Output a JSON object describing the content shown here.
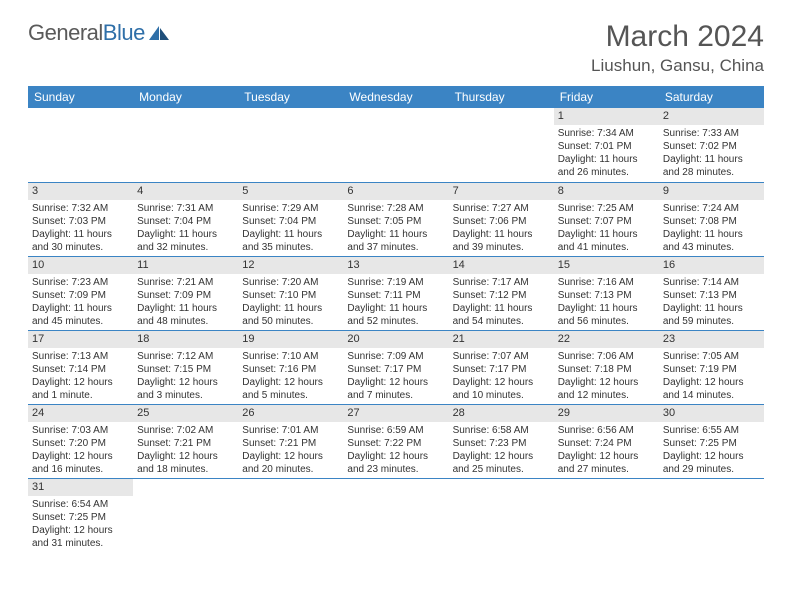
{
  "logo": {
    "text1": "General",
    "text2": "Blue"
  },
  "title": "March 2024",
  "subtitle": "Liushun, Gansu, China",
  "colors": {
    "header_bg": "#3b84c4",
    "header_fg": "#ffffff",
    "daynum_bg": "#e7e7e7",
    "rule": "#3b84c4",
    "logo_blue": "#2f6fa8",
    "text": "#333333"
  },
  "weekdays": [
    "Sunday",
    "Monday",
    "Tuesday",
    "Wednesday",
    "Thursday",
    "Friday",
    "Saturday"
  ],
  "weeks": [
    [
      {
        "n": "",
        "lines": []
      },
      {
        "n": "",
        "lines": []
      },
      {
        "n": "",
        "lines": []
      },
      {
        "n": "",
        "lines": []
      },
      {
        "n": "",
        "lines": []
      },
      {
        "n": "1",
        "lines": [
          "Sunrise: 7:34 AM",
          "Sunset: 7:01 PM",
          "Daylight: 11 hours and 26 minutes."
        ]
      },
      {
        "n": "2",
        "lines": [
          "Sunrise: 7:33 AM",
          "Sunset: 7:02 PM",
          "Daylight: 11 hours and 28 minutes."
        ]
      }
    ],
    [
      {
        "n": "3",
        "lines": [
          "Sunrise: 7:32 AM",
          "Sunset: 7:03 PM",
          "Daylight: 11 hours and 30 minutes."
        ]
      },
      {
        "n": "4",
        "lines": [
          "Sunrise: 7:31 AM",
          "Sunset: 7:04 PM",
          "Daylight: 11 hours and 32 minutes."
        ]
      },
      {
        "n": "5",
        "lines": [
          "Sunrise: 7:29 AM",
          "Sunset: 7:04 PM",
          "Daylight: 11 hours and 35 minutes."
        ]
      },
      {
        "n": "6",
        "lines": [
          "Sunrise: 7:28 AM",
          "Sunset: 7:05 PM",
          "Daylight: 11 hours and 37 minutes."
        ]
      },
      {
        "n": "7",
        "lines": [
          "Sunrise: 7:27 AM",
          "Sunset: 7:06 PM",
          "Daylight: 11 hours and 39 minutes."
        ]
      },
      {
        "n": "8",
        "lines": [
          "Sunrise: 7:25 AM",
          "Sunset: 7:07 PM",
          "Daylight: 11 hours and 41 minutes."
        ]
      },
      {
        "n": "9",
        "lines": [
          "Sunrise: 7:24 AM",
          "Sunset: 7:08 PM",
          "Daylight: 11 hours and 43 minutes."
        ]
      }
    ],
    [
      {
        "n": "10",
        "lines": [
          "Sunrise: 7:23 AM",
          "Sunset: 7:09 PM",
          "Daylight: 11 hours and 45 minutes."
        ]
      },
      {
        "n": "11",
        "lines": [
          "Sunrise: 7:21 AM",
          "Sunset: 7:09 PM",
          "Daylight: 11 hours and 48 minutes."
        ]
      },
      {
        "n": "12",
        "lines": [
          "Sunrise: 7:20 AM",
          "Sunset: 7:10 PM",
          "Daylight: 11 hours and 50 minutes."
        ]
      },
      {
        "n": "13",
        "lines": [
          "Sunrise: 7:19 AM",
          "Sunset: 7:11 PM",
          "Daylight: 11 hours and 52 minutes."
        ]
      },
      {
        "n": "14",
        "lines": [
          "Sunrise: 7:17 AM",
          "Sunset: 7:12 PM",
          "Daylight: 11 hours and 54 minutes."
        ]
      },
      {
        "n": "15",
        "lines": [
          "Sunrise: 7:16 AM",
          "Sunset: 7:13 PM",
          "Daylight: 11 hours and 56 minutes."
        ]
      },
      {
        "n": "16",
        "lines": [
          "Sunrise: 7:14 AM",
          "Sunset: 7:13 PM",
          "Daylight: 11 hours and 59 minutes."
        ]
      }
    ],
    [
      {
        "n": "17",
        "lines": [
          "Sunrise: 7:13 AM",
          "Sunset: 7:14 PM",
          "Daylight: 12 hours and 1 minute."
        ]
      },
      {
        "n": "18",
        "lines": [
          "Sunrise: 7:12 AM",
          "Sunset: 7:15 PM",
          "Daylight: 12 hours and 3 minutes."
        ]
      },
      {
        "n": "19",
        "lines": [
          "Sunrise: 7:10 AM",
          "Sunset: 7:16 PM",
          "Daylight: 12 hours and 5 minutes."
        ]
      },
      {
        "n": "20",
        "lines": [
          "Sunrise: 7:09 AM",
          "Sunset: 7:17 PM",
          "Daylight: 12 hours and 7 minutes."
        ]
      },
      {
        "n": "21",
        "lines": [
          "Sunrise: 7:07 AM",
          "Sunset: 7:17 PM",
          "Daylight: 12 hours and 10 minutes."
        ]
      },
      {
        "n": "22",
        "lines": [
          "Sunrise: 7:06 AM",
          "Sunset: 7:18 PM",
          "Daylight: 12 hours and 12 minutes."
        ]
      },
      {
        "n": "23",
        "lines": [
          "Sunrise: 7:05 AM",
          "Sunset: 7:19 PM",
          "Daylight: 12 hours and 14 minutes."
        ]
      }
    ],
    [
      {
        "n": "24",
        "lines": [
          "Sunrise: 7:03 AM",
          "Sunset: 7:20 PM",
          "Daylight: 12 hours and 16 minutes."
        ]
      },
      {
        "n": "25",
        "lines": [
          "Sunrise: 7:02 AM",
          "Sunset: 7:21 PM",
          "Daylight: 12 hours and 18 minutes."
        ]
      },
      {
        "n": "26",
        "lines": [
          "Sunrise: 7:01 AM",
          "Sunset: 7:21 PM",
          "Daylight: 12 hours and 20 minutes."
        ]
      },
      {
        "n": "27",
        "lines": [
          "Sunrise: 6:59 AM",
          "Sunset: 7:22 PM",
          "Daylight: 12 hours and 23 minutes."
        ]
      },
      {
        "n": "28",
        "lines": [
          "Sunrise: 6:58 AM",
          "Sunset: 7:23 PM",
          "Daylight: 12 hours and 25 minutes."
        ]
      },
      {
        "n": "29",
        "lines": [
          "Sunrise: 6:56 AM",
          "Sunset: 7:24 PM",
          "Daylight: 12 hours and 27 minutes."
        ]
      },
      {
        "n": "30",
        "lines": [
          "Sunrise: 6:55 AM",
          "Sunset: 7:25 PM",
          "Daylight: 12 hours and 29 minutes."
        ]
      }
    ],
    [
      {
        "n": "31",
        "lines": [
          "Sunrise: 6:54 AM",
          "Sunset: 7:25 PM",
          "Daylight: 12 hours and 31 minutes."
        ]
      },
      {
        "n": "",
        "lines": []
      },
      {
        "n": "",
        "lines": []
      },
      {
        "n": "",
        "lines": []
      },
      {
        "n": "",
        "lines": []
      },
      {
        "n": "",
        "lines": []
      },
      {
        "n": "",
        "lines": []
      }
    ]
  ]
}
